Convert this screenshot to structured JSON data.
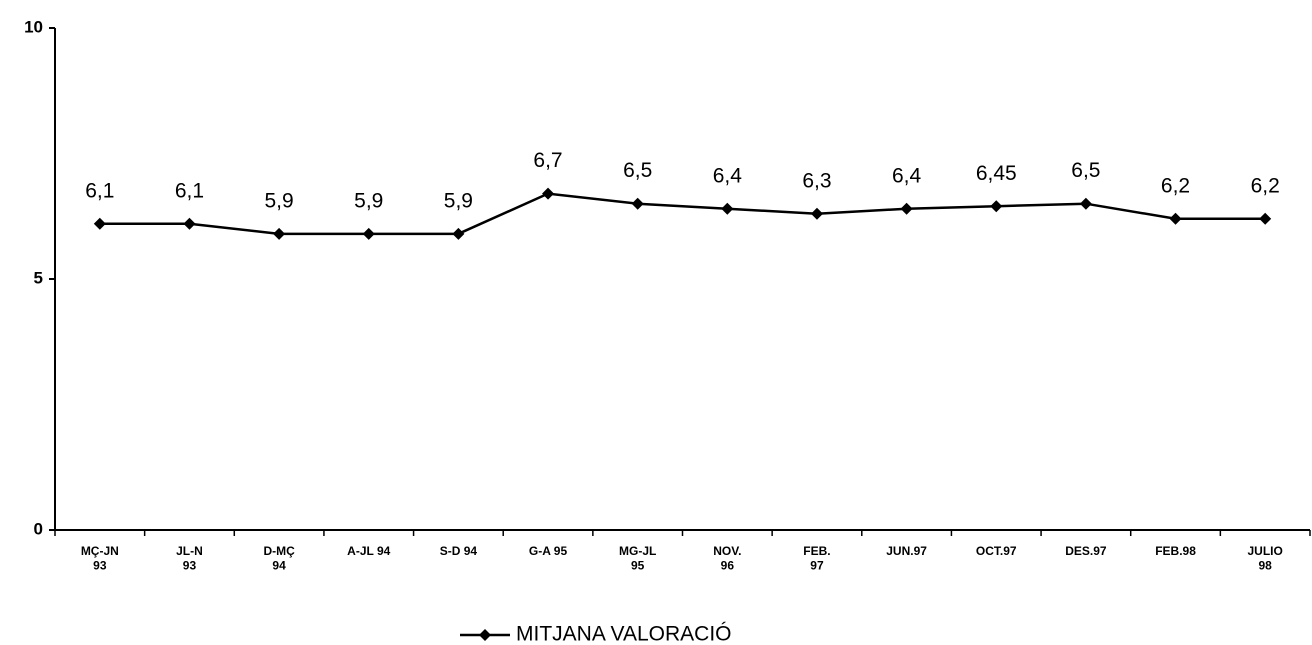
{
  "chart_data": {
    "type": "line",
    "categories": [
      "MÇ-JN\n93",
      "JL-N\n93",
      "D-MÇ\n94",
      "A-JL 94",
      "S-D 94",
      "G-A 95",
      "MG-JL\n95",
      "NOV.\n96",
      "FEB.\n97",
      "JUN.97",
      "OCT.97",
      "DES.97",
      "FEB.98",
      "JULIO\n98"
    ],
    "series": [
      {
        "name": "MITJANA VALORACIÓ",
        "color": "#000000",
        "values": [
          6.1,
          6.1,
          5.9,
          5.9,
          5.9,
          6.7,
          6.5,
          6.4,
          6.3,
          6.4,
          6.45,
          6.5,
          6.2,
          6.2
        ],
        "value_labels": [
          "6,1",
          "6,1",
          "5,9",
          "5,9",
          "5,9",
          "6,7",
          "6,5",
          "6,4",
          "6,3",
          "6,4",
          "6,45",
          "6,5",
          "6,2",
          "6,2"
        ]
      }
    ],
    "ylim": [
      0,
      10
    ],
    "yticks": [
      0,
      5,
      10
    ],
    "legend": "bottom"
  }
}
